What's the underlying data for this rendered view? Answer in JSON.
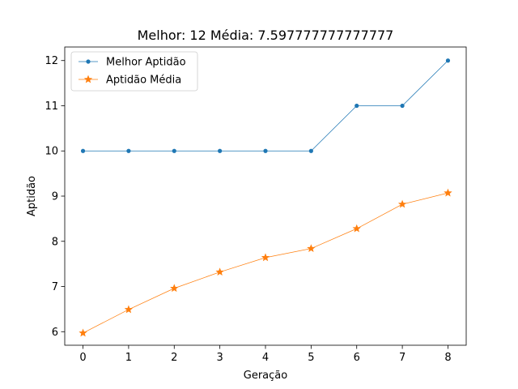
{
  "chart_data": {
    "type": "line",
    "title": "Melhor: 12 Média: 7.597777777777777",
    "xlabel": "Geração",
    "ylabel": "Aptidão",
    "x": [
      0,
      1,
      2,
      3,
      4,
      5,
      6,
      7,
      8
    ],
    "xlim": [
      -0.4,
      8.4
    ],
    "ylim": [
      5.7,
      12.3
    ],
    "xticks": [
      "0",
      "1",
      "2",
      "3",
      "4",
      "5",
      "6",
      "7",
      "8"
    ],
    "yticks": [
      "6",
      "7",
      "8",
      "9",
      "10",
      "11",
      "12"
    ],
    "grid": false,
    "legend_position": "top-left",
    "series": [
      {
        "name": "Melhor Aptidão",
        "values": [
          10,
          10,
          10,
          10,
          10,
          10,
          11,
          11,
          12
        ],
        "color": "#1f77b4",
        "marker": "dot"
      },
      {
        "name": "Aptidão Média",
        "values": [
          5.97,
          6.49,
          6.96,
          7.32,
          7.64,
          7.84,
          8.28,
          8.82,
          9.07
        ],
        "color": "#ff7f0e",
        "marker": "star"
      }
    ]
  }
}
